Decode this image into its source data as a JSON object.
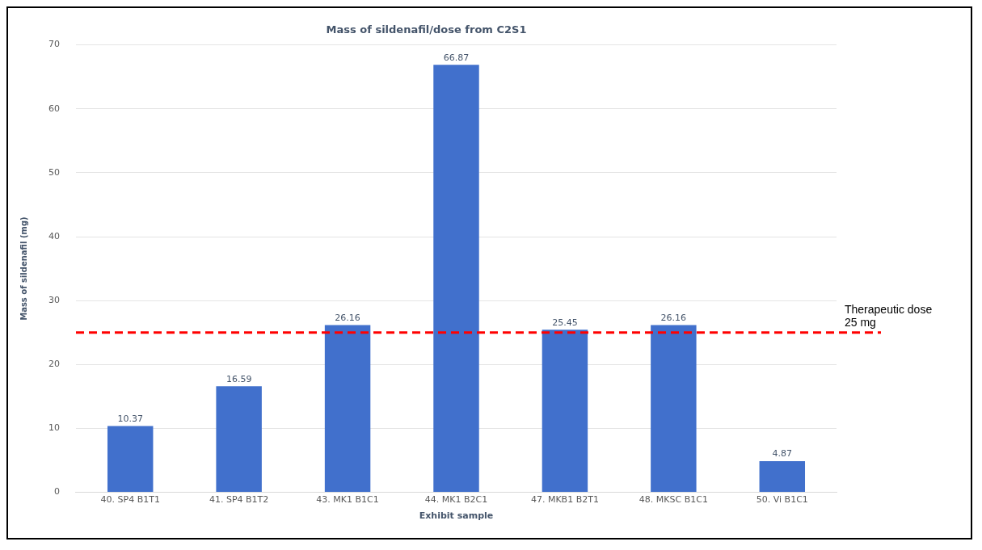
{
  "chart_data": {
    "type": "bar",
    "title": "Mass of sildenafil/dose from C2S1",
    "xlabel": "Exhibit sample",
    "ylabel": "Mass of sildenafil (mg)",
    "categories": [
      "40. SP4 B1T1",
      "41. SP4 B1T2",
      "43. MK1 B1C1",
      "44. MK1 B2C1",
      "47. MKB1 B2T1",
      "48. MKSC B1C1",
      "50. Vi B1C1"
    ],
    "values": [
      10.37,
      16.59,
      26.16,
      66.87,
      25.45,
      26.16,
      4.87
    ],
    "color": "#4170cc",
    "ylim": [
      0,
      70
    ],
    "yticks": [
      0,
      10,
      20,
      30,
      40,
      50,
      60,
      70
    ],
    "grid": "y",
    "data_labels": true,
    "ref_lines": [
      {
        "axis": "y",
        "value": 25,
        "label": "Therapeutic dose\n25 mg",
        "color": "#ff0000",
        "line_style": "dashed"
      }
    ],
    "legend": false
  }
}
